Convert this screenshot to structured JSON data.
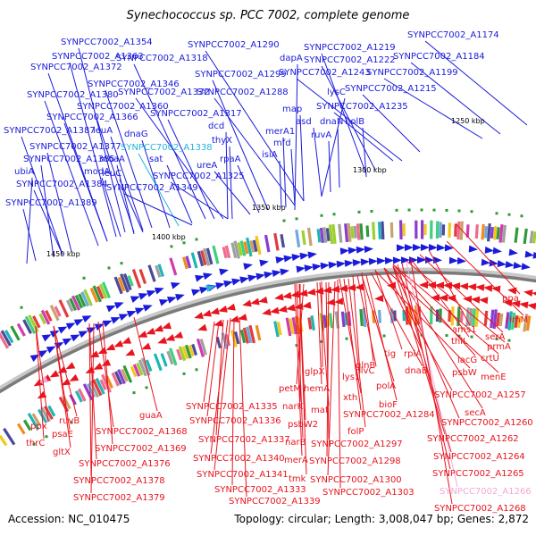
{
  "title": "Synechococcus sp. PCC 7002, complete genome",
  "footer": {
    "accession": "Accession: NC_010475",
    "topology": "Topology: circular; Length: 3,008,047 bp; Genes: 2,872"
  },
  "colors": {
    "forward": "#1a1adb",
    "reverse": "#e8141e",
    "highlight_forward": "#26b4dc",
    "highlight_reverse": "#f1a9d8"
  },
  "scale_labels": [
    "1250 kbp",
    "1300 kbp",
    "1350 kbp",
    "1400 kbp",
    "1450 kbp"
  ],
  "forward_labels": [
    "SYNPCC7002_A1354",
    "SYNPCC7002_A1363",
    "SYNPCC7002_A1372",
    "SYNPCC7002_A1318",
    "SYNPCC7002_A1290",
    "SYNPCC7002_A1219",
    "SYNPCC7002_A1174",
    "SYNPCC7002_A1222",
    "SYNPCC7002_A1184",
    "dapA",
    "SYNPCC7002_A1299",
    "SYNPCC7002_A1243",
    "SYNPCC7002_A1199",
    "SYNPCC7002_A1346",
    "SYNPCC7002_A1380",
    "SYNPCC7002_A1332",
    "SYNPCC7002_A1288",
    "lysC",
    "SYNPCC7002_A1215",
    "SYNPCC7002_A1360",
    "map",
    "SYNPCC7002_A1235",
    "SYNPCC7002_A1366",
    "SYNPCC7002_A1317",
    "asd",
    "dnaN",
    "holB",
    "SYNPCC7002_A1387",
    "leuA",
    "dcd",
    "merA1",
    "mfd",
    "dnaG",
    "ruvA",
    "thyX",
    "SYNPCC7002_A1377",
    "SYNPCC7002_A1338",
    "isiA",
    "SYNPCC7002_A1385",
    "moaA",
    "sat",
    "rpaA",
    "ubiA",
    "leuC",
    "modA",
    "ureA",
    "SYNPCC7002_A1325",
    "SYNPCC7002_A1384",
    "SYNPCC7002_A1349",
    "SYNPCC7002_A1389"
  ],
  "reverse_labels": [
    "ppa",
    "rimM",
    "ams1",
    "serA",
    "thiL",
    "prmA",
    "crtU",
    "lacG",
    "rplA",
    "tig",
    "glnB",
    "menE",
    "psbW",
    "lys1",
    "ilvC",
    "dnaB",
    "polA",
    "glpX",
    "hemA",
    "petM",
    "xth",
    "maf",
    "narK",
    "SYNPCC7002_A1257",
    "SYNPCC7002_A1335",
    "bioF",
    "secA",
    "psbW2",
    "SYNPCC7002_A1284",
    "SYNPCC7002_A1336",
    "SYNPCC7002_A1260",
    "folP",
    "ppx",
    "ruvB",
    "guaA",
    "psaE",
    "narB",
    "SYNPCC7002_A1337",
    "SYNPCC7002_A1262",
    "thrC",
    "SYNPCC7002_A1368",
    "SYNPCC7002_A1297",
    "gltX",
    "SYNPCC7002_A1369",
    "SYNPCC7002_A1340",
    "merA",
    "SYNPCC7002_A1298",
    "SYNPCC7002_A1376",
    "SYNPCC7002_A1264",
    "SYNPCC7002_A1341",
    "tmk",
    "SYNPCC7002_A1300",
    "SYNPCC7002_A1378",
    "SYNPCC7002_A1333",
    "SYNPCC7002_A1265",
    "SYNPCC7002_A1303",
    "SYNPCC7002_A1266",
    "SYNPCC7002_A1379",
    "SYNPCC7002_A1339",
    "SYNPCC7002_A1268"
  ]
}
